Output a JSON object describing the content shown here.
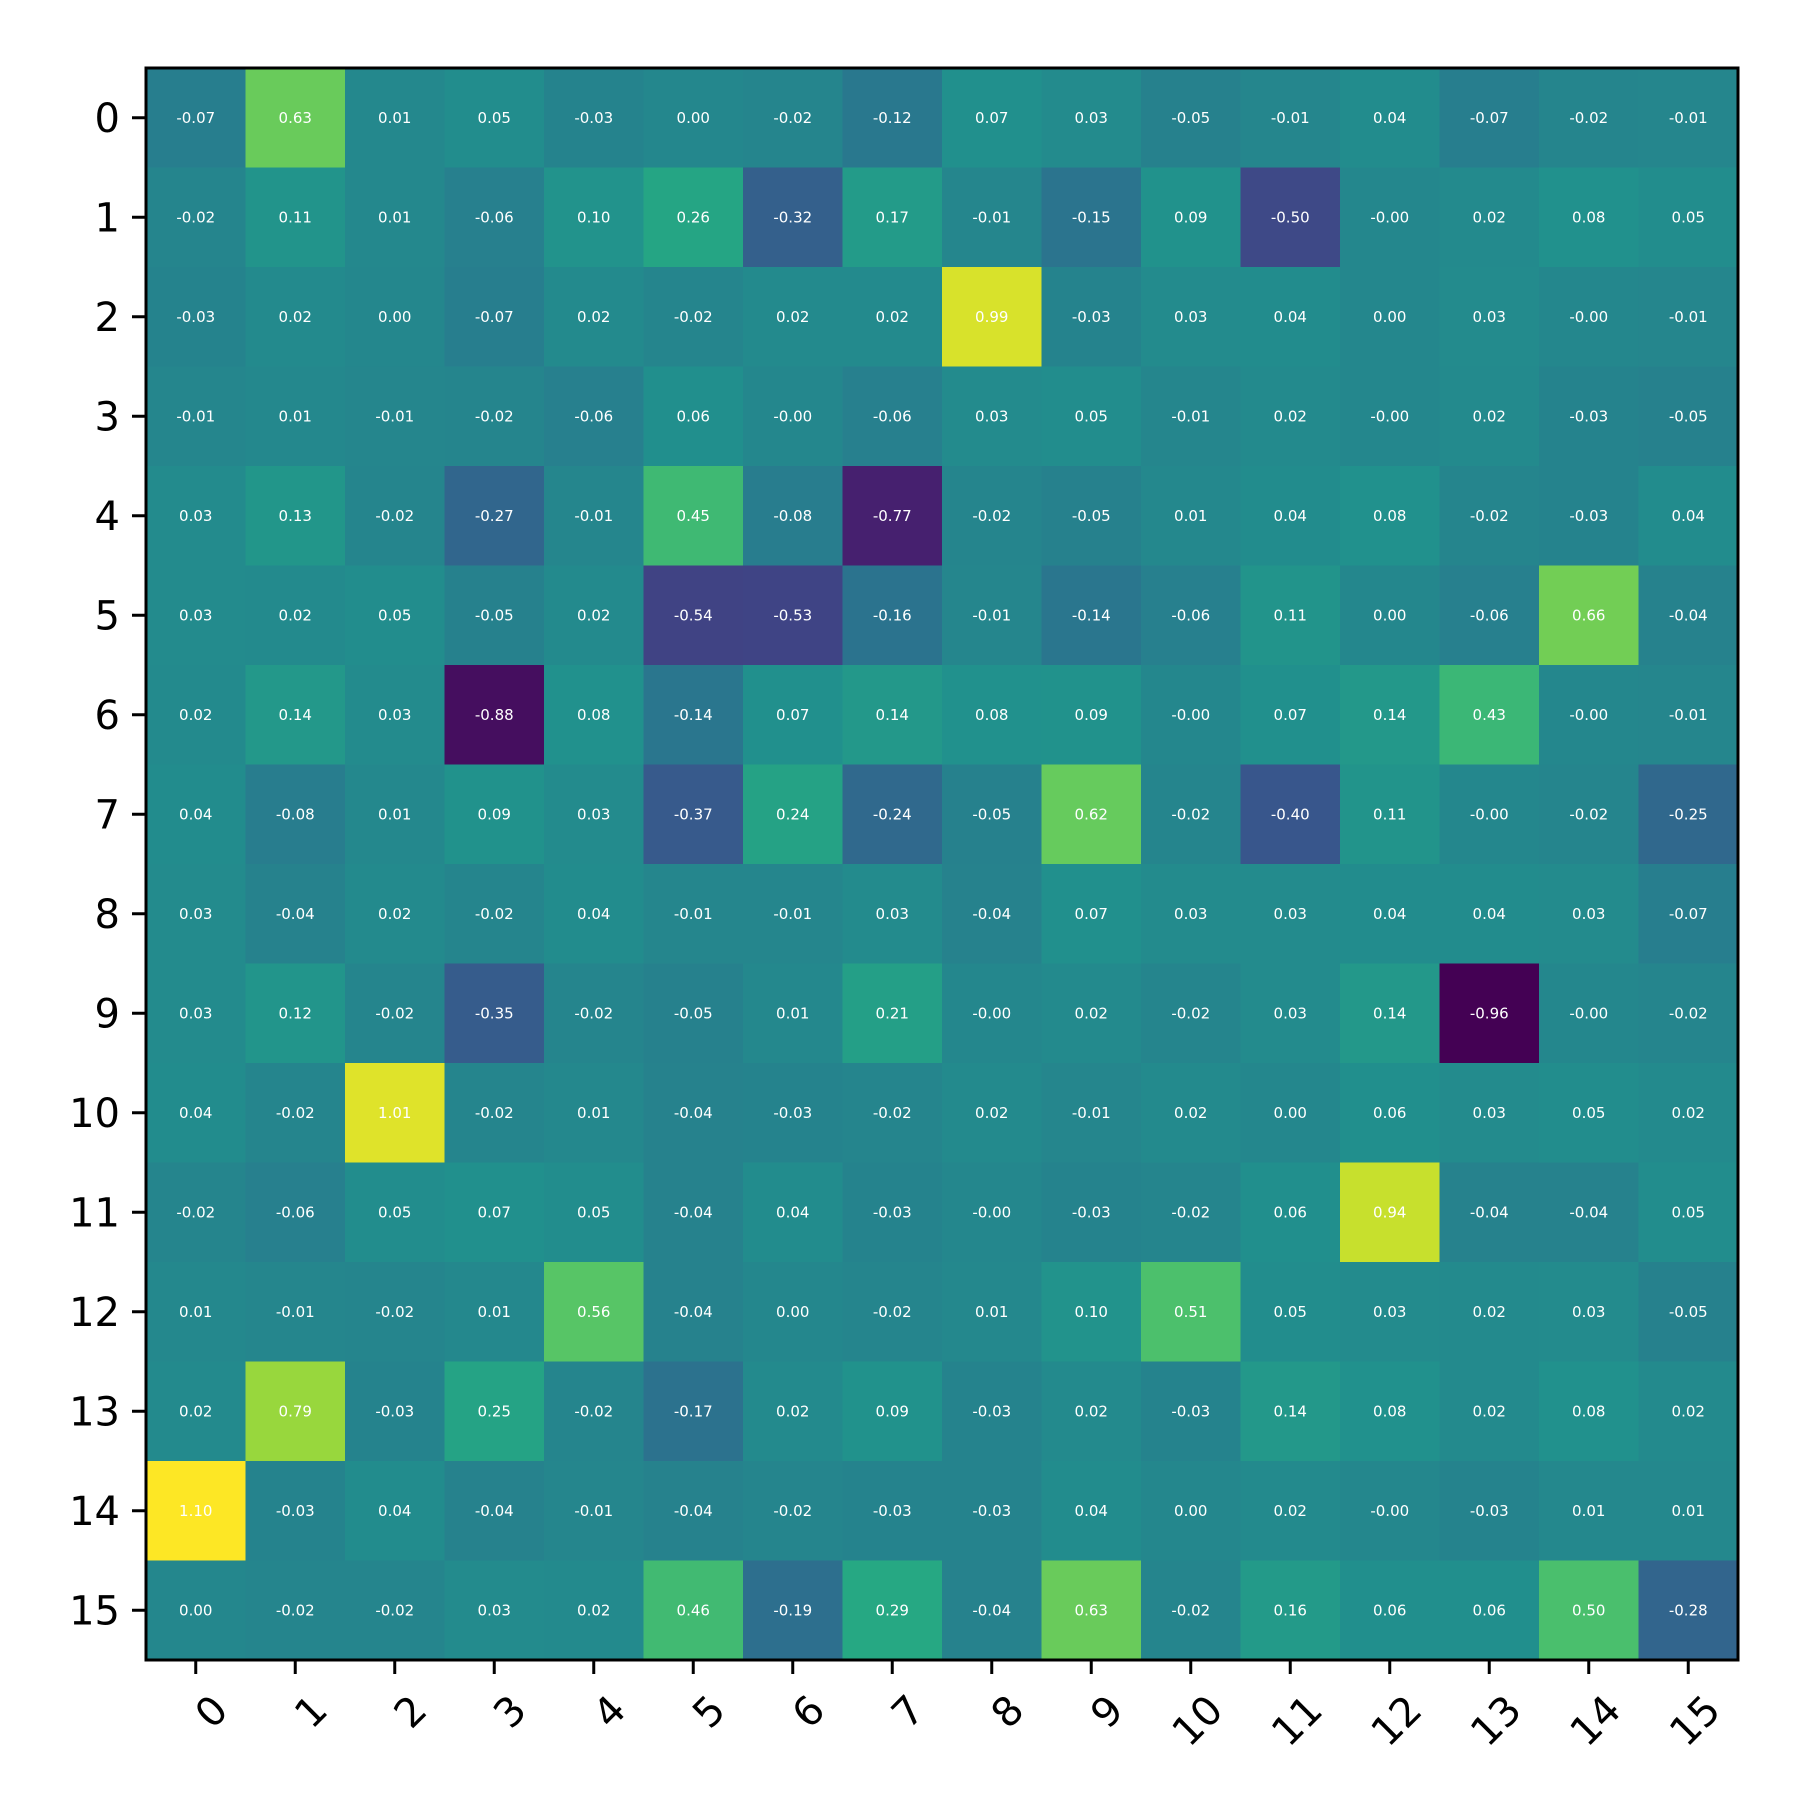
{
  "chart_data": {
    "type": "heatmap",
    "title": "",
    "xlabel": "",
    "ylabel": "",
    "x_ticks": [
      "0",
      "1",
      "2",
      "3",
      "4",
      "5",
      "6",
      "7",
      "8",
      "9",
      "10",
      "11",
      "12",
      "13",
      "14",
      "15"
    ],
    "y_ticks": [
      "0",
      "1",
      "2",
      "3",
      "4",
      "5",
      "6",
      "7",
      "8",
      "9",
      "10",
      "11",
      "12",
      "13",
      "14",
      "15"
    ],
    "colormap": "viridis",
    "vmin": -0.96,
    "vmax": 1.1,
    "values": [
      [
        "-0.07",
        "0.63",
        "0.01",
        "0.05",
        "-0.03",
        "0.00",
        "-0.02",
        "-0.12",
        "0.07",
        "0.03",
        "-0.05",
        "-0.01",
        "0.04",
        "-0.07",
        "-0.02",
        "-0.01"
      ],
      [
        "-0.02",
        "0.11",
        "0.01",
        "-0.06",
        "0.10",
        "0.26",
        "-0.32",
        "0.17",
        "-0.01",
        "-0.15",
        "0.09",
        "-0.50",
        "-0.00",
        "0.02",
        "0.08",
        "0.05"
      ],
      [
        "-0.03",
        "0.02",
        "0.00",
        "-0.07",
        "0.02",
        "-0.02",
        "0.02",
        "0.02",
        "0.99",
        "-0.03",
        "0.03",
        "0.04",
        "0.00",
        "0.03",
        "-0.00",
        "-0.01"
      ],
      [
        "-0.01",
        "0.01",
        "-0.01",
        "-0.02",
        "-0.06",
        "0.06",
        "-0.00",
        "-0.06",
        "0.03",
        "0.05",
        "-0.01",
        "0.02",
        "-0.00",
        "0.02",
        "-0.03",
        "-0.05"
      ],
      [
        "0.03",
        "0.13",
        "-0.02",
        "-0.27",
        "-0.01",
        "0.45",
        "-0.08",
        "-0.77",
        "-0.02",
        "-0.05",
        "0.01",
        "0.04",
        "0.08",
        "-0.02",
        "-0.03",
        "0.04"
      ],
      [
        "0.03",
        "0.02",
        "0.05",
        "-0.05",
        "0.02",
        "-0.54",
        "-0.53",
        "-0.16",
        "-0.01",
        "-0.14",
        "-0.06",
        "0.11",
        "0.00",
        "-0.06",
        "0.66",
        "-0.04"
      ],
      [
        "0.02",
        "0.14",
        "0.03",
        "-0.88",
        "0.08",
        "-0.14",
        "0.07",
        "0.14",
        "0.08",
        "0.09",
        "-0.00",
        "0.07",
        "0.14",
        "0.43",
        "-0.00",
        "-0.01"
      ],
      [
        "0.04",
        "-0.08",
        "0.01",
        "0.09",
        "0.03",
        "-0.37",
        "0.24",
        "-0.24",
        "-0.05",
        "0.62",
        "-0.02",
        "-0.40",
        "0.11",
        "-0.00",
        "-0.02",
        "-0.25"
      ],
      [
        "0.03",
        "-0.04",
        "0.02",
        "-0.02",
        "0.04",
        "-0.01",
        "-0.01",
        "0.03",
        "-0.04",
        "0.07",
        "0.03",
        "0.03",
        "0.04",
        "0.04",
        "0.03",
        "-0.07"
      ],
      [
        "0.03",
        "0.12",
        "-0.02",
        "-0.35",
        "-0.02",
        "-0.05",
        "0.01",
        "0.21",
        "-0.00",
        "0.02",
        "-0.02",
        "0.03",
        "0.14",
        "-0.96",
        "-0.00",
        "-0.02"
      ],
      [
        "0.04",
        "-0.02",
        "1.01",
        "-0.02",
        "0.01",
        "-0.04",
        "-0.03",
        "-0.02",
        "0.02",
        "-0.01",
        "0.02",
        "0.00",
        "0.06",
        "0.03",
        "0.05",
        "0.02"
      ],
      [
        "-0.02",
        "-0.06",
        "0.05",
        "0.07",
        "0.05",
        "-0.04",
        "0.04",
        "-0.03",
        "-0.00",
        "-0.03",
        "-0.02",
        "0.06",
        "0.94",
        "-0.04",
        "-0.04",
        "0.05"
      ],
      [
        "0.01",
        "-0.01",
        "-0.02",
        "0.01",
        "0.56",
        "-0.04",
        "0.00",
        "-0.02",
        "0.01",
        "0.10",
        "0.51",
        "0.05",
        "0.03",
        "0.02",
        "0.03",
        "-0.05"
      ],
      [
        "0.02",
        "0.79",
        "-0.03",
        "0.25",
        "-0.02",
        "-0.17",
        "0.02",
        "0.09",
        "-0.03",
        "0.02",
        "-0.03",
        "0.14",
        "0.08",
        "0.02",
        "0.08",
        "0.02"
      ],
      [
        "1.10",
        "-0.03",
        "0.04",
        "-0.04",
        "-0.01",
        "-0.04",
        "-0.02",
        "-0.03",
        "-0.03",
        "0.04",
        "0.00",
        "0.02",
        "-0.00",
        "-0.03",
        "0.01",
        "0.01"
      ],
      [
        "0.00",
        "-0.02",
        "-0.02",
        "0.03",
        "0.02",
        "0.46",
        "-0.19",
        "0.29",
        "-0.04",
        "0.63",
        "-0.02",
        "0.16",
        "0.06",
        "0.06",
        "0.50",
        "-0.28"
      ]
    ]
  }
}
